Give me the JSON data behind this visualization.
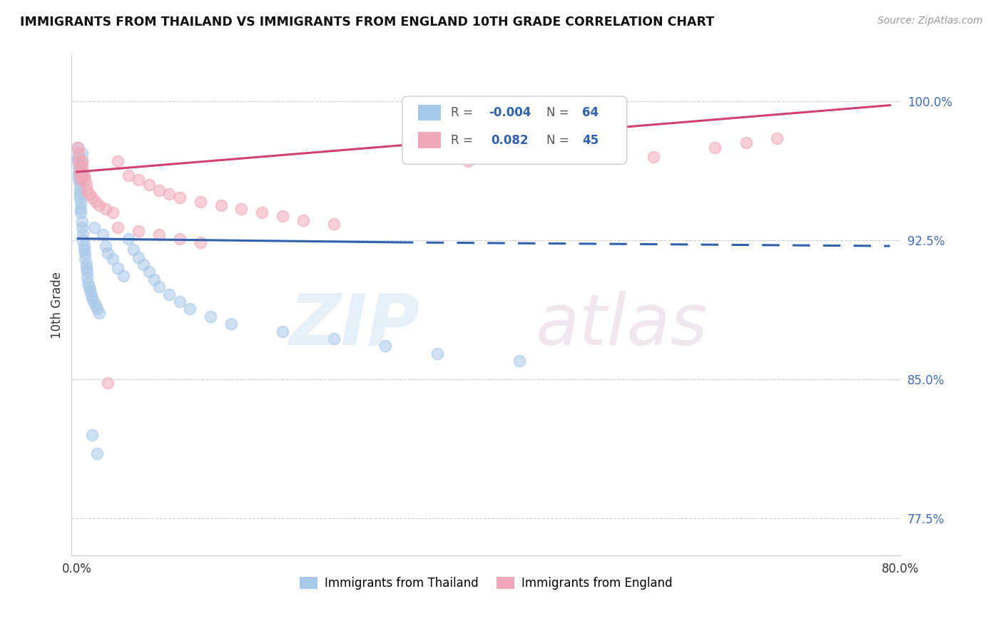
{
  "title": "IMMIGRANTS FROM THAILAND VS IMMIGRANTS FROM ENGLAND 10TH GRADE CORRELATION CHART",
  "source": "Source: ZipAtlas.com",
  "ylabel": "10th Grade",
  "y_ticks": [
    0.775,
    0.85,
    0.925,
    1.0
  ],
  "y_tick_labels": [
    "77.5%",
    "85.0%",
    "92.5%",
    "100.0%"
  ],
  "color_thailand": "#a8c8e8",
  "color_england": "#f0a8b8",
  "color_trend_thailand": "#3060b0",
  "color_trend_england": "#d04070",
  "legend_r1_label": "R = ",
  "legend_r1_val": "-0.004",
  "legend_n1_label": "N = ",
  "legend_n1_val": "64",
  "legend_r2_label": "R =  ",
  "legend_r2_val": "0.082",
  "legend_n2_label": "N = ",
  "legend_n2_val": "45",
  "thailand_x": [
    0.001,
    0.001,
    0.001,
    0.002,
    0.002,
    0.002,
    0.002,
    0.003,
    0.003,
    0.003,
    0.003,
    0.004,
    0.004,
    0.004,
    0.005,
    0.005,
    0.005,
    0.005,
    0.006,
    0.006,
    0.006,
    0.007,
    0.007,
    0.008,
    0.008,
    0.009,
    0.009,
    0.01,
    0.01,
    0.011,
    0.012,
    0.013,
    0.014,
    0.015,
    0.016,
    0.017,
    0.018,
    0.02,
    0.022,
    0.025,
    0.028,
    0.03,
    0.035,
    0.04,
    0.045,
    0.05,
    0.055,
    0.06,
    0.065,
    0.07,
    0.075,
    0.08,
    0.09,
    0.1,
    0.11,
    0.13,
    0.15,
    0.2,
    0.25,
    0.3,
    0.35,
    0.43,
    0.015,
    0.02
  ],
  "thailand_y": [
    0.975,
    0.97,
    0.968,
    0.965,
    0.962,
    0.96,
    0.958,
    0.955,
    0.952,
    0.95,
    0.948,
    0.945,
    0.942,
    0.94,
    0.972,
    0.968,
    0.935,
    0.932,
    0.96,
    0.928,
    0.925,
    0.922,
    0.92,
    0.918,
    0.915,
    0.912,
    0.91,
    0.908,
    0.905,
    0.902,
    0.9,
    0.898,
    0.896,
    0.894,
    0.892,
    0.932,
    0.89,
    0.888,
    0.886,
    0.928,
    0.922,
    0.918,
    0.915,
    0.91,
    0.906,
    0.926,
    0.92,
    0.916,
    0.912,
    0.908,
    0.904,
    0.9,
    0.896,
    0.892,
    0.888,
    0.884,
    0.88,
    0.876,
    0.872,
    0.868,
    0.864,
    0.86,
    0.82,
    0.81
  ],
  "england_x": [
    0.001,
    0.002,
    0.002,
    0.003,
    0.003,
    0.004,
    0.004,
    0.005,
    0.005,
    0.006,
    0.007,
    0.008,
    0.009,
    0.01,
    0.012,
    0.015,
    0.018,
    0.022,
    0.028,
    0.035,
    0.04,
    0.05,
    0.06,
    0.07,
    0.08,
    0.09,
    0.1,
    0.12,
    0.14,
    0.16,
    0.18,
    0.2,
    0.22,
    0.25,
    0.04,
    0.06,
    0.08,
    0.1,
    0.12,
    0.56,
    0.62,
    0.65,
    0.68,
    0.03,
    0.38
  ],
  "england_y": [
    0.975,
    0.972,
    0.968,
    0.965,
    0.962,
    0.96,
    0.958,
    0.968,
    0.965,
    0.962,
    0.96,
    0.958,
    0.955,
    0.952,
    0.95,
    0.948,
    0.946,
    0.944,
    0.942,
    0.94,
    0.968,
    0.96,
    0.958,
    0.955,
    0.952,
    0.95,
    0.948,
    0.946,
    0.944,
    0.942,
    0.94,
    0.938,
    0.936,
    0.934,
    0.932,
    0.93,
    0.928,
    0.926,
    0.924,
    0.97,
    0.975,
    0.978,
    0.98,
    0.848,
    0.968
  ],
  "xlim": [
    -0.005,
    0.8
  ],
  "ylim": [
    0.755,
    1.025
  ],
  "trend_thailand_x0": 0.0,
  "trend_thailand_x1": 0.31,
  "trend_thailand_y0": 0.926,
  "trend_thailand_y1": 0.924,
  "trend_thailand_dashed_x0": 0.31,
  "trend_thailand_dashed_x1": 0.79,
  "trend_thailand_dashed_y0": 0.924,
  "trend_thailand_dashed_y1": 0.922,
  "trend_england_x0": 0.0,
  "trend_england_x1": 0.79,
  "trend_england_y0": 0.962,
  "trend_england_y1": 0.998
}
